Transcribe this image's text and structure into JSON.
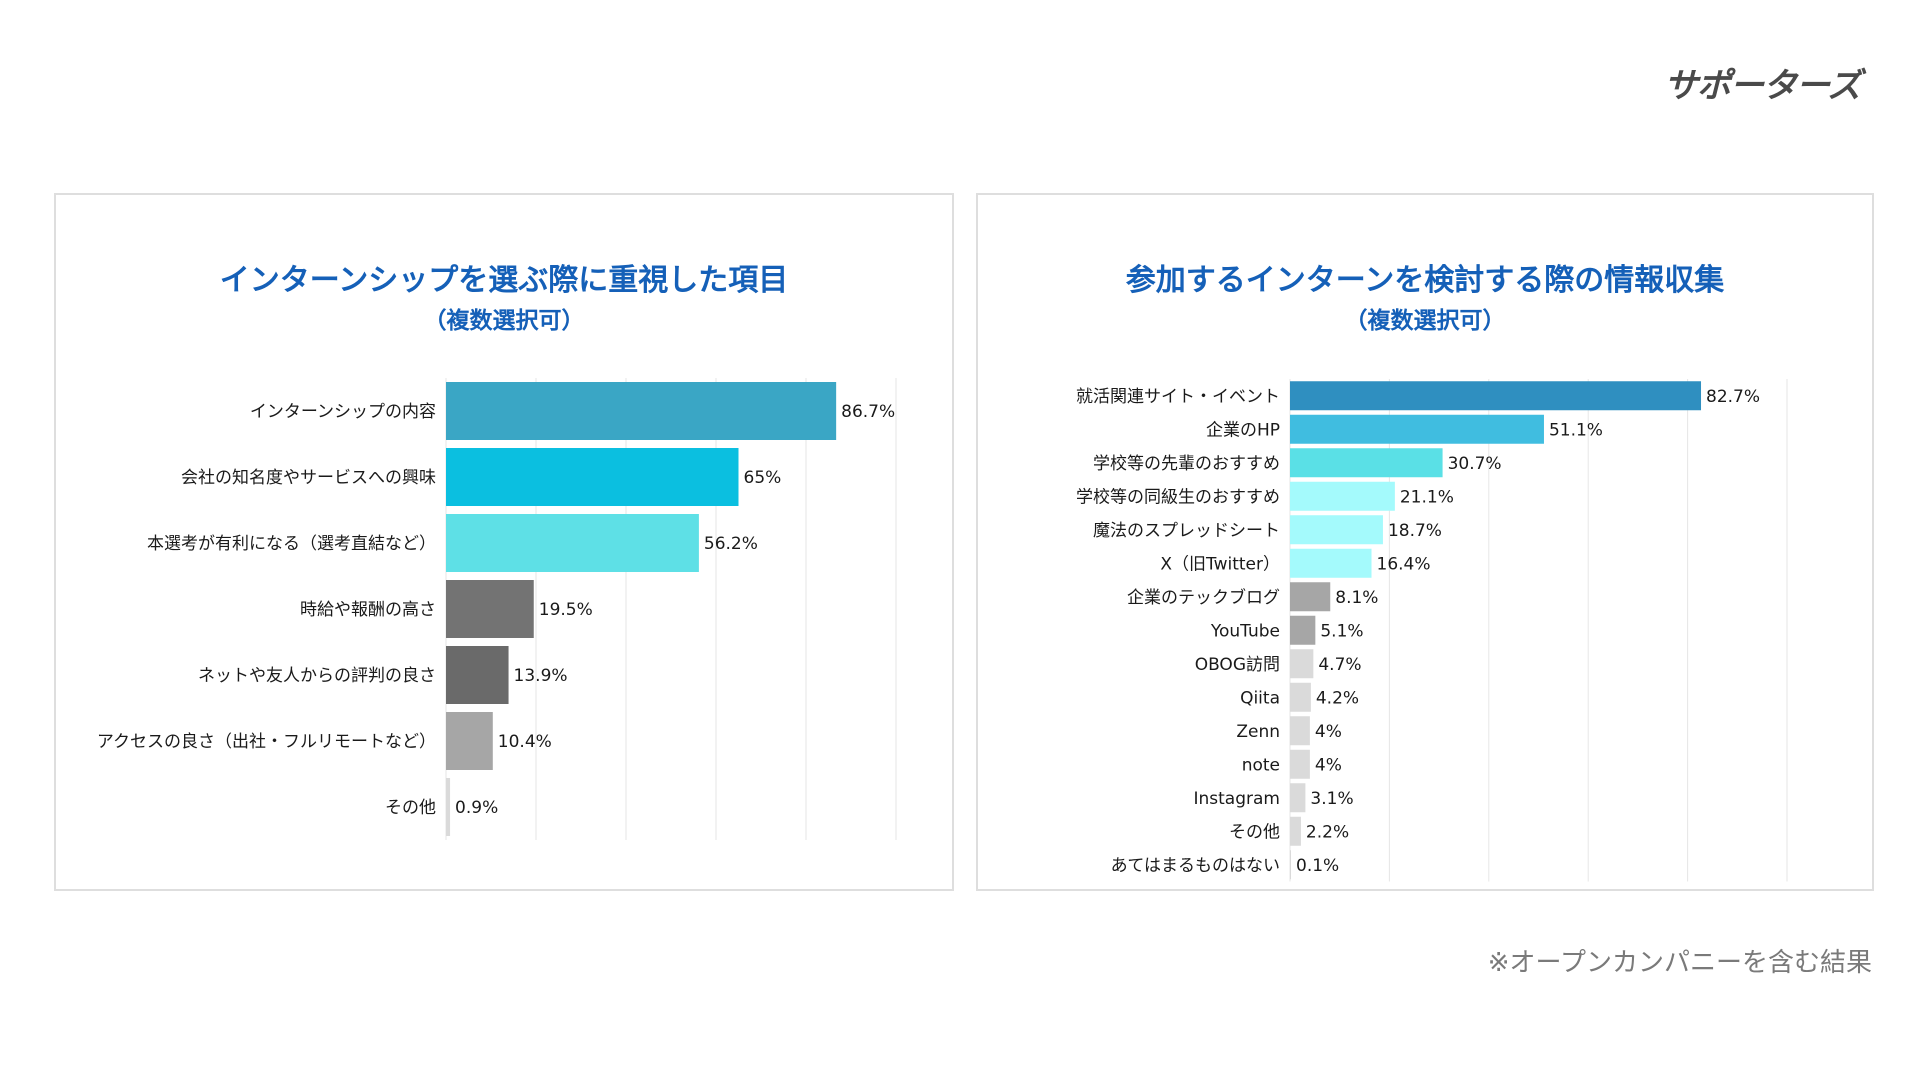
{
  "logo": {
    "text": "サポーターズ"
  },
  "footnote": "※オープンカンパニーを含む結果",
  "chart_data": [
    {
      "type": "bar",
      "orientation": "horizontal",
      "title": "インターンシップを選ぶ際に重視した項目",
      "subtitle": "（複数選択可）",
      "xlim": [
        0,
        100
      ],
      "categories": [
        "インターンシップの内容",
        "会社の知名度やサービスへの興味",
        "本選考が有利になる（選考直結など）",
        "時給や報酬の高さ",
        "ネットや友人からの評判の良さ",
        "アクセスの良さ（出社・フルリモートなど）",
        "その他"
      ],
      "values": [
        86.7,
        65,
        56.2,
        19.5,
        13.9,
        10.4,
        0.9
      ],
      "labels": [
        "86.7%",
        "65%",
        "56.2%",
        "19.5%",
        "13.9%",
        "10.4%",
        "0.9%"
      ],
      "colors": [
        "#3aa6c5",
        "#0bbfe0",
        "#5ee0e6",
        "#737373",
        "#6a6a6a",
        "#a6a6a6",
        "#dadada"
      ]
    },
    {
      "type": "bar",
      "orientation": "horizontal",
      "title": "参加するインターンを検討する際の情報収集",
      "subtitle": "（複数選択可）",
      "xlim": [
        0,
        100
      ],
      "categories": [
        "就活関連サイト・イベント",
        "企業のHP",
        "学校等の先輩のおすすめ",
        "学校等の同級生のおすすめ",
        "魔法のスプレッドシート",
        "X（旧Twitter）",
        "企業のテックブログ",
        "YouTube",
        "OBOG訪問",
        "Qiita",
        "Zenn",
        "note",
        "Instagram",
        "その他",
        "あてはまるものはない"
      ],
      "values": [
        82.7,
        51.1,
        30.7,
        21.1,
        18.7,
        16.4,
        8.1,
        5.1,
        4.7,
        4.2,
        4,
        4,
        3.1,
        2.2,
        0.1
      ],
      "labels": [
        "82.7%",
        "51.1%",
        "30.7%",
        "21.1%",
        "18.7%",
        "16.4%",
        "8.1%",
        "5.1%",
        "4.7%",
        "4.2%",
        "4%",
        "4%",
        "3.1%",
        "2.2%",
        "0.1%"
      ],
      "colors": [
        "#2f8fc0",
        "#40bde0",
        "#5ae0e6",
        "#a4fafc",
        "#a4fafc",
        "#a4fafc",
        "#a6a6a6",
        "#a6a6a6",
        "#dadada",
        "#dadada",
        "#dadada",
        "#dadada",
        "#dadada",
        "#dadada",
        "#dadada"
      ]
    }
  ]
}
